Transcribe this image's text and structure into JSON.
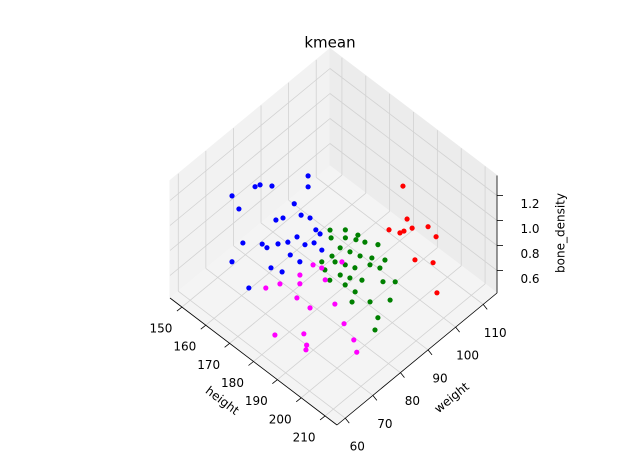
{
  "chart_data": {
    "type": "scatter3d",
    "title": "kmean",
    "xlabel": "height",
    "ylabel": "weight",
    "zlabel": "bone_density",
    "xlim": [
      145,
      215
    ],
    "ylim": [
      57,
      115
    ],
    "zlim": [
      0.42,
      1.36
    ],
    "xticks": [
      150,
      160,
      170,
      180,
      190,
      200,
      210
    ],
    "yticks": [
      60,
      70,
      80,
      90,
      100,
      110
    ],
    "zticks": [
      0.6,
      0.8,
      {
        "value": 1,
        "label": "1.0"
      },
      1.2
    ],
    "grid": true,
    "series": [
      {
        "color": "#0000ff",
        "x": [
          154.0,
          156.6,
          157.2,
          160.1,
          154.0,
          165.3,
          168.2,
          164.7,
          165.0,
          166.0,
          169.2,
          171.9,
          176.3,
          158.9,
          163.4,
          165.4,
          166.8,
          168.5,
          169.1,
          172.9,
          161.5,
          168.8,
          171.6,
          172.4,
          176.3,
          175.1,
          178.0,
          174.4,
          178.3
        ],
        "y": [
          71.7,
          77.8,
          79.1,
          80.9,
          74.2,
          89.5,
          87.0,
          85.0,
          78.1,
          79.8,
          83.6,
          84.5,
          82.8,
          71.4,
          74.5,
          74.5,
          77.3,
          79.4,
          82.2,
          81.8,
          65.2,
          65.0,
          70.6,
          76.9,
          77.0,
          71.6,
          83.5,
          83.8,
          82.6
        ],
        "z": [
          1.1,
          1.1,
          1.1,
          1.1,
          0.95,
          1.1,
          1.1,
          0.95,
          0.95,
          0.95,
          0.95,
          0.95,
          0.95,
          0.8,
          0.8,
          0.8,
          0.8,
          0.8,
          0.8,
          0.8,
          0.8,
          0.7,
          0.8,
          0.8,
          0.8,
          0.8,
          0.8,
          0.8,
          0.95
        ]
      },
      {
        "color": "#008000",
        "x": [
          174.5,
          176.8,
          179.9,
          182.7,
          185.3,
          188.8,
          181.4,
          184.6,
          187.9,
          191.0,
          194.4,
          181.1,
          184.0,
          187.0,
          189.9,
          192.4,
          195.4,
          183.9,
          188.6,
          191.5,
          194.7,
          192.3,
          187.7,
          193.0,
          198.9,
          199.7,
          202.4,
          202.8,
          204.1,
          201.5,
          191.7,
          177.8,
          181.9,
          181.8
        ],
        "y": [
          89.5,
          87.9,
          90.4,
          91.8,
          92.8,
          94.5,
          87.2,
          88.0,
          88.8,
          90.4,
          92.2,
          80.8,
          83.1,
          84.2,
          85.2,
          88.5,
          89.5,
          79.5,
          81.0,
          82.0,
          83.6,
          79.6,
          78.0,
          82.6,
          82.9,
          86.9,
          89.0,
          86.8,
          80.2,
          83.5,
          82.6,
          92.2,
          93.2,
          83.9
        ],
        "z": [
          0.8,
          0.8,
          0.8,
          0.8,
          0.8,
          0.8,
          0.8,
          0.8,
          0.8,
          0.8,
          0.8,
          0.8,
          0.8,
          0.8,
          0.8,
          0.8,
          0.8,
          0.8,
          0.8,
          0.8,
          0.8,
          0.8,
          0.8,
          0.7,
          0.7,
          0.8,
          0.8,
          0.7,
          0.6,
          0.6,
          0.6,
          0.8,
          0.8,
          0.8
        ]
      },
      {
        "color": "#ff00ff",
        "x": [
          169.2,
          171.2,
          175.5,
          173.4,
          180.0,
          178.9,
          180.8,
          175.3,
          185.2,
          180.3,
          186.3,
          189.9,
          191.0,
          192.4,
          198.8,
          202.7,
          173.2,
          176.1
        ],
        "y": [
          70.8,
          74.2,
          77.7,
          84.3,
          83.0,
          90.0,
          76.8,
          76.8,
          82.0,
          64.5,
          69.8,
          67.7,
          66.5,
          79.1,
          77.1,
          74.8,
          79.7,
          85.1
        ],
        "z": [
          0.6,
          0.6,
          0.6,
          0.6,
          0.6,
          0.6,
          0.5,
          0.5,
          0.5,
          0.5,
          0.5,
          0.5,
          0.5,
          0.5,
          0.5,
          0.5,
          0.6,
          0.6
        ]
      },
      {
        "color": "#ff0000",
        "x": [
          192.0,
          195.0,
          197.1,
          197.5,
          198.5,
          193.9,
          201.6,
          206.0,
          204.2,
          208.9,
          211.1
        ],
        "y": [
          100.8,
          99.7,
          95.3,
          96.4,
          98.5,
          94.1,
          101.6,
          100.7,
          94.6,
          97.1,
          96.6
        ],
        "z": [
          1.2,
          1.0,
          1.0,
          1.0,
          1.0,
          1.0,
          1.0,
          1.0,
          0.9,
          0.9,
          0.7
        ]
      }
    ]
  }
}
